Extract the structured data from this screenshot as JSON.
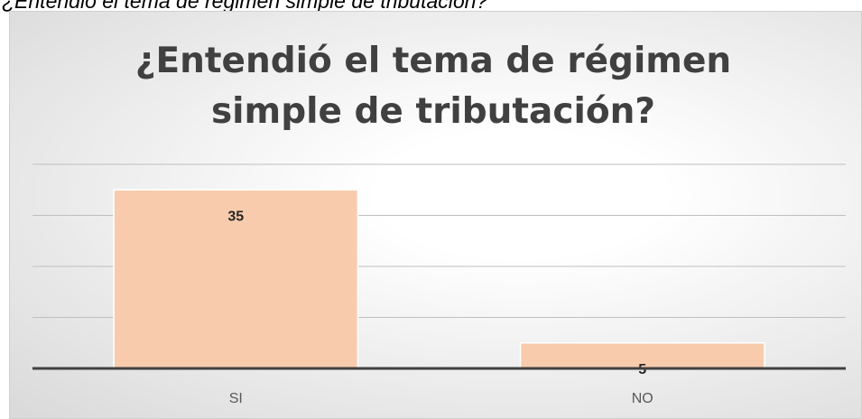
{
  "caption": "¿Entendió el tema de régimen simple de tributación?",
  "chart_data": {
    "type": "bar",
    "title": "¿Entendió el tema de régimen simple de tributación?",
    "categories": [
      "SI",
      "NO"
    ],
    "values": [
      35,
      5
    ],
    "color": "#f8cbad",
    "ylim": [
      0,
      40
    ],
    "yticks": [
      0,
      10,
      20,
      30,
      40
    ],
    "grid": true
  }
}
